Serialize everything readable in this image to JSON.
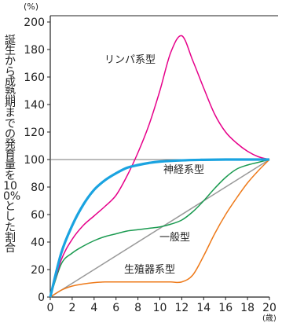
{
  "chart_data": {
    "type": "line",
    "ylabel": "誕生から成熟期までの発育量を100%とした割合",
    "y_unit": "(%)",
    "x_unit": "(歳)",
    "xlim": [
      0,
      20
    ],
    "ylim": [
      0,
      200
    ],
    "x_ticks": [
      "0",
      "2",
      "4",
      "6",
      "8",
      "10",
      "12",
      "14",
      "16",
      "18",
      "20"
    ],
    "y_ticks": [
      "0",
      "20",
      "40",
      "60",
      "80",
      "100",
      "120",
      "140",
      "160",
      "180",
      "200"
    ],
    "reference_line": {
      "y": 100
    },
    "series": [
      {
        "name": "リンパ系型",
        "color": "#e6008a",
        "points": [
          [
            0,
            0
          ],
          [
            1,
            27
          ],
          [
            2,
            42
          ],
          [
            3,
            52
          ],
          [
            4,
            59
          ],
          [
            5,
            66
          ],
          [
            6,
            74
          ],
          [
            7,
            88
          ],
          [
            8,
            105
          ],
          [
            9,
            125
          ],
          [
            10,
            150
          ],
          [
            11,
            178
          ],
          [
            12,
            190
          ],
          [
            13,
            172
          ],
          [
            14,
            152
          ],
          [
            15,
            133
          ],
          [
            16,
            120
          ],
          [
            17,
            112
          ],
          [
            18,
            106
          ],
          [
            19,
            102
          ],
          [
            20,
            100
          ]
        ]
      },
      {
        "name": "神経系型",
        "color": "#1aa3e0",
        "points": [
          [
            0,
            0
          ],
          [
            1,
            32
          ],
          [
            2,
            52
          ],
          [
            3,
            67
          ],
          [
            4,
            78
          ],
          [
            5,
            85
          ],
          [
            6,
            90
          ],
          [
            7,
            94
          ],
          [
            8,
            96
          ],
          [
            9,
            97.5
          ],
          [
            10,
            98.5
          ],
          [
            12,
            99.4
          ],
          [
            14,
            99.8
          ],
          [
            16,
            100
          ],
          [
            18,
            100
          ],
          [
            20,
            100
          ]
        ]
      },
      {
        "name": "一般型",
        "color": "#1a9a50",
        "points": [
          [
            0,
            0
          ],
          [
            1,
            24
          ],
          [
            2,
            32
          ],
          [
            3,
            37
          ],
          [
            4,
            41
          ],
          [
            5,
            44
          ],
          [
            6,
            46
          ],
          [
            7,
            48
          ],
          [
            8,
            49
          ],
          [
            9,
            50
          ],
          [
            10,
            51
          ],
          [
            11,
            53
          ],
          [
            12,
            56
          ],
          [
            13,
            62
          ],
          [
            14,
            70
          ],
          [
            15,
            79
          ],
          [
            16,
            87
          ],
          [
            17,
            93
          ],
          [
            18,
            96
          ],
          [
            19,
            98
          ],
          [
            20,
            100
          ]
        ]
      },
      {
        "name": "生殖器系型",
        "color": "#ee7a1a",
        "points": [
          [
            0,
            0
          ],
          [
            1,
            5
          ],
          [
            2,
            8
          ],
          [
            3,
            9.5
          ],
          [
            4,
            10.5
          ],
          [
            5,
            11
          ],
          [
            6,
            11
          ],
          [
            8,
            11
          ],
          [
            10,
            11
          ],
          [
            11,
            11
          ],
          [
            12,
            11
          ],
          [
            13,
            16
          ],
          [
            14,
            30
          ],
          [
            15,
            46
          ],
          [
            16,
            60
          ],
          [
            17,
            72
          ],
          [
            18,
            83
          ],
          [
            19,
            92
          ],
          [
            20,
            100
          ]
        ]
      },
      {
        "name": "",
        "color": "#999999",
        "points": [
          [
            0,
            0
          ],
          [
            20,
            100
          ]
        ]
      }
    ]
  }
}
